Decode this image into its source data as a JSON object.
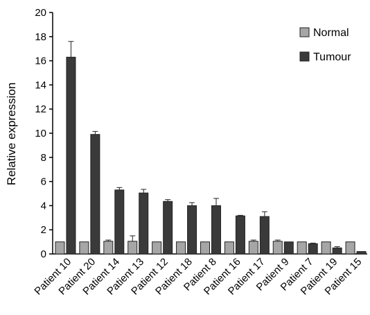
{
  "chart_data": {
    "type": "bar",
    "title": "",
    "xlabel": "",
    "ylabel": "Relative expression",
    "ylim": [
      0,
      20
    ],
    "yticks": [
      0,
      2,
      4,
      6,
      8,
      10,
      12,
      14,
      16,
      18,
      20
    ],
    "grid": false,
    "legend_position": "top-right",
    "categories": [
      "Patient 10",
      "Patient 20",
      "Patient 14",
      "Patient 13",
      "Patient 12",
      "Patient 18",
      "Patient 8",
      "Patient 16",
      "Patient 17",
      "Patient 9",
      "Patient 7",
      "Patient 19",
      "Patient 15"
    ],
    "series": [
      {
        "name": "Normal",
        "color": "#a6a6a6",
        "values": [
          1,
          1,
          1.05,
          1.05,
          1,
          1,
          1,
          1,
          1.05,
          1.05,
          1,
          1,
          1
        ],
        "errors": [
          0,
          0,
          0.1,
          0.45,
          0,
          0,
          0,
          0,
          0.1,
          0.1,
          0,
          0,
          0
        ]
      },
      {
        "name": "Tumour",
        "color": "#3a3a3a",
        "values": [
          16.3,
          9.9,
          5.3,
          5.05,
          4.35,
          4.0,
          4.0,
          3.15,
          3.1,
          1.0,
          0.85,
          0.5,
          0.2
        ],
        "errors": [
          1.3,
          0.25,
          0.2,
          0.3,
          0.15,
          0.25,
          0.6,
          0.05,
          0.4,
          0,
          0.05,
          0.1,
          0
        ]
      }
    ]
  }
}
